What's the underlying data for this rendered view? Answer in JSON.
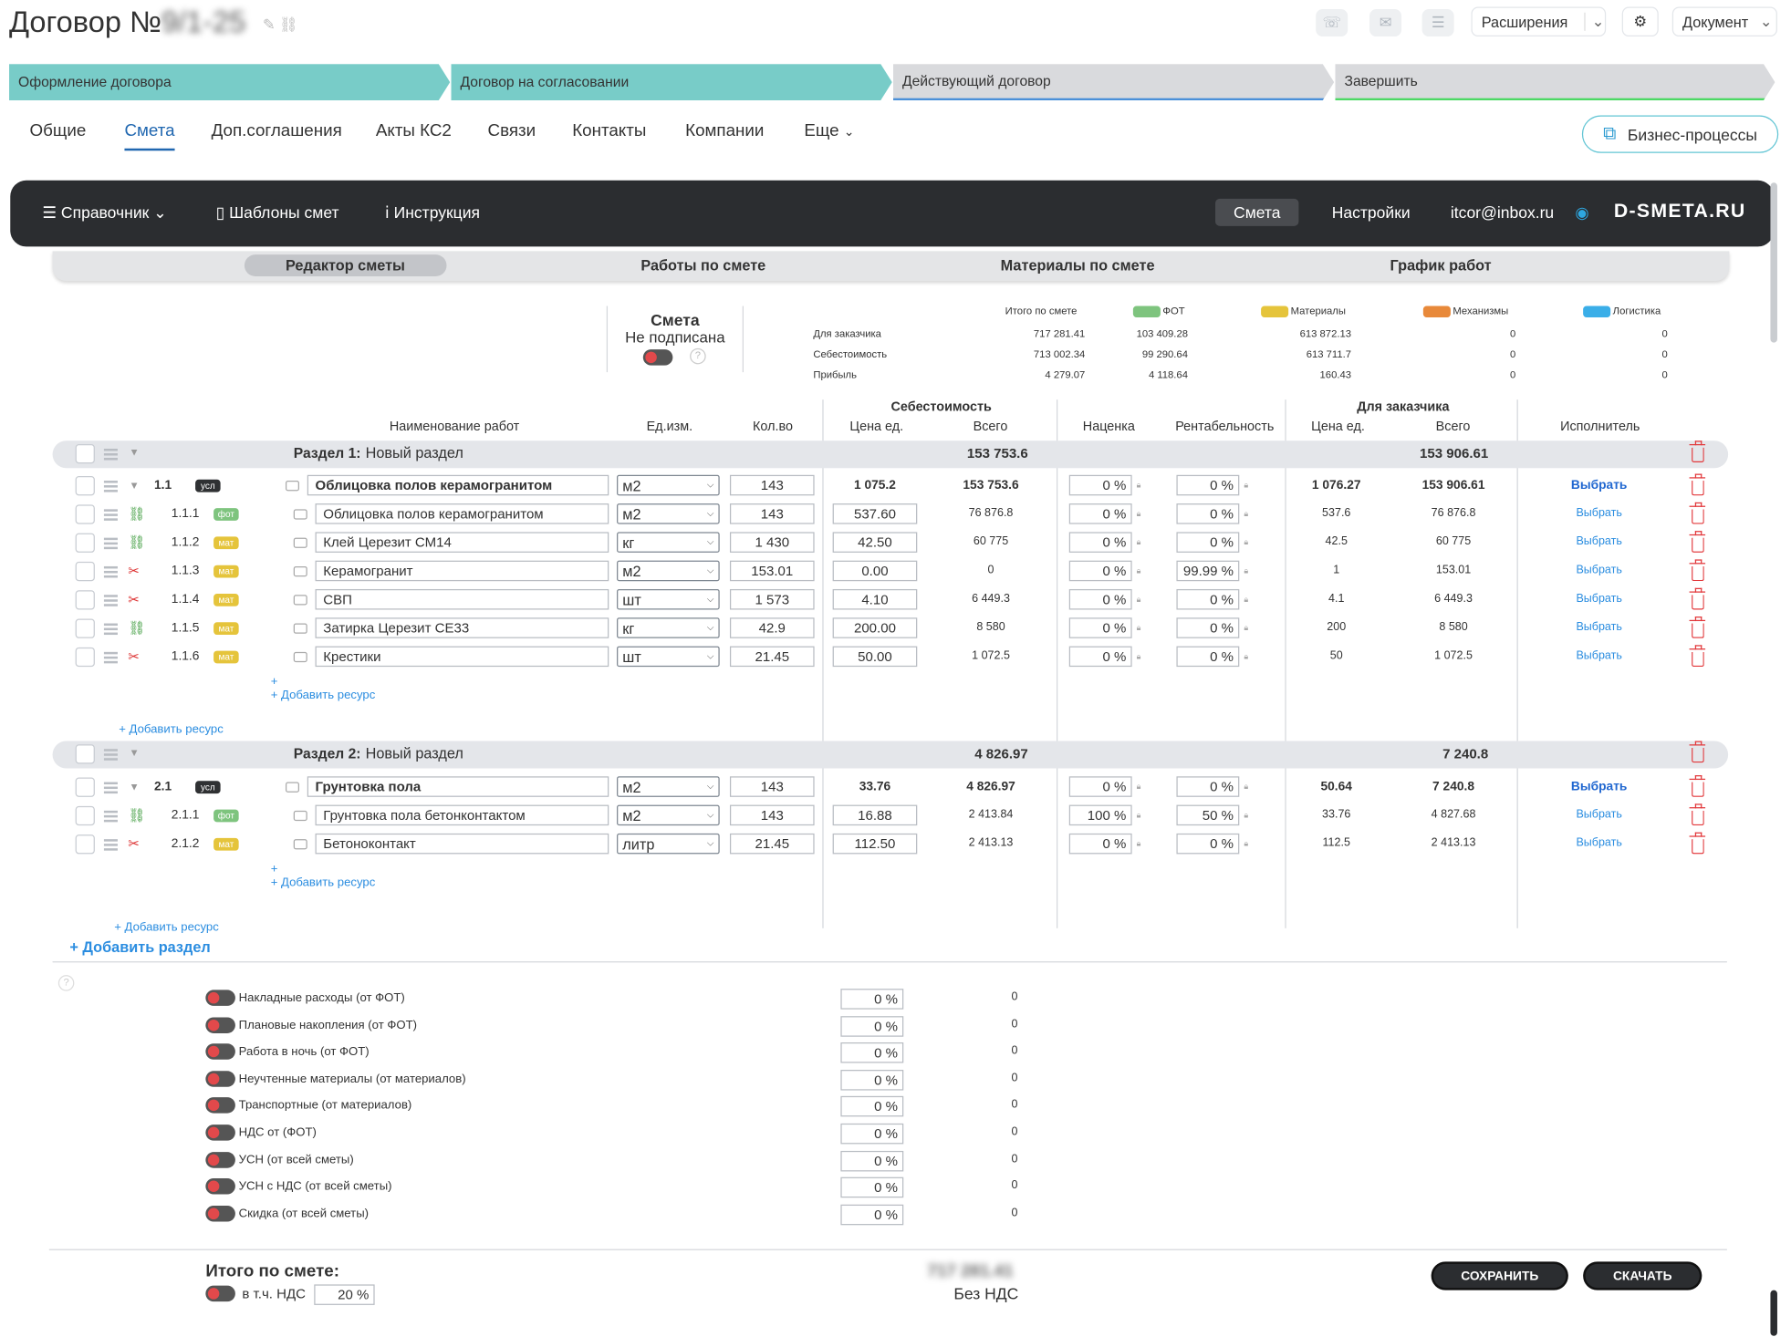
{
  "header": {
    "title": "Договор №9/1-25",
    "title_prefix": "Договор №",
    "title_blurred": "9/1-25",
    "extensions": "Расширения",
    "document": "Документ"
  },
  "stages": [
    {
      "label": "Оформление договора",
      "color": "#78ccc8"
    },
    {
      "label": "Договор на согласовании",
      "color": "#78ccc8"
    },
    {
      "label": "Действующий договор",
      "color": "#d9dadd"
    },
    {
      "label": "Завершить",
      "color": "#d9dadd"
    }
  ],
  "tabs": [
    "Общие",
    "Смета",
    "Доп.соглашения",
    "Акты КС2",
    "Связи",
    "Контакты",
    "Компании",
    "Еще"
  ],
  "business_processes": "Бизнес-процессы",
  "topbar": {
    "reference": "Справочник",
    "templates": "Шаблоны смет",
    "instruction": "Инструкция",
    "smeta": "Смета",
    "settings": "Настройки",
    "email": "itcor@inbox.ru",
    "logo": "D-SMETA.RU"
  },
  "subtabs": [
    "Редактор сметы",
    "Работы по смете",
    "Материалы по смете",
    "График работ"
  ],
  "status": {
    "title": "Смета",
    "state": "Не подписана"
  },
  "summary": {
    "headers": [
      "Итого по смете",
      "ФОТ",
      "Материалы",
      "Механизмы",
      "Логистика"
    ],
    "colors": [
      "#7ec47e",
      "#e5c43b",
      "#e8893a",
      "#3aaee8"
    ],
    "rows": [
      {
        "label": "Для заказчика",
        "values": [
          "717 281.41",
          "103 409.28",
          "613 872.13",
          "0",
          "0"
        ]
      },
      {
        "label": "Себестоимость",
        "values": [
          "713 002.34",
          "99 290.64",
          "613 711.7",
          "0",
          "0"
        ]
      },
      {
        "label": "Прибыль",
        "values": [
          "4 279.07",
          "4 118.64",
          "160.43",
          "0",
          "0"
        ]
      }
    ]
  },
  "columns": {
    "cost_group": "Себестоимость",
    "client_group": "Для заказчика",
    "name": "Наименование работ",
    "unit": "Ед.изм.",
    "qty": "Кол.во",
    "price": "Цена ед.",
    "total": "Всего",
    "markup": "Наценка",
    "profit": "Рентабельность",
    "client_price": "Цена ед.",
    "client_total": "Всего",
    "executor": "Исполнитель"
  },
  "sections": [
    {
      "label": "Раздел 1:",
      "name": "Новый раздел",
      "cost_total": "153 753.6",
      "client_total": "153 906.61",
      "rows": [
        {
          "num": "1.1",
          "badge": "усл",
          "name": "Облицовка полов керамогранитом",
          "unit": "м2",
          "qty": "143",
          "price": "1 075.2",
          "total": "153 753.6",
          "markup": "0",
          "profit": "0",
          "cprice": "1 076.27",
          "ctotal": "153 906.61",
          "exec": "Выбрать",
          "main": true
        },
        {
          "num": "1.1.1",
          "badge": "фот",
          "name": "Облицовка полов керамогранитом",
          "unit": "м2",
          "qty": "143",
          "price": "537.60",
          "total": "76 876.8",
          "markup": "0",
          "profit": "0",
          "cprice": "537.6",
          "ctotal": "76 876.8",
          "exec": "Выбрать",
          "link": "green"
        },
        {
          "num": "1.1.2",
          "badge": "мат",
          "name": "Клей Церезит СМ14",
          "unit": "кг",
          "qty": "1 430",
          "price": "42.50",
          "total": "60 775",
          "markup": "0",
          "profit": "0",
          "cprice": "42.5",
          "ctotal": "60 775",
          "exec": "Выбрать",
          "link": "green"
        },
        {
          "num": "1.1.3",
          "badge": "мат",
          "name": "Керамогранит",
          "unit": "м2",
          "qty": "153.01",
          "price": "0.00",
          "total": "0",
          "markup": "0",
          "profit": "99.99",
          "cprice": "1",
          "ctotal": "153.01",
          "exec": "Выбрать",
          "link": "red"
        },
        {
          "num": "1.1.4",
          "badge": "мат",
          "name": "СВП",
          "unit": "шт",
          "qty": "1 573",
          "price": "4.10",
          "total": "6 449.3",
          "markup": "0",
          "profit": "0",
          "cprice": "4.1",
          "ctotal": "6 449.3",
          "exec": "Выбрать",
          "link": "red"
        },
        {
          "num": "1.1.5",
          "badge": "мат",
          "name": "Затирка Церезит СЕ33",
          "unit": "кг",
          "qty": "42.9",
          "price": "200.00",
          "total": "8 580",
          "markup": "0",
          "profit": "0",
          "cprice": "200",
          "ctotal": "8 580",
          "exec": "Выбрать",
          "link": "green"
        },
        {
          "num": "1.1.6",
          "badge": "мат",
          "name": "Крестики",
          "unit": "шт",
          "qty": "21.45",
          "price": "50.00",
          "total": "1 072.5",
          "markup": "0",
          "profit": "0",
          "cprice": "50",
          "ctotal": "1 072.5",
          "exec": "Выбрать",
          "link": "red"
        }
      ]
    },
    {
      "label": "Раздел 2:",
      "name": "Новый раздел",
      "cost_total": "4 826.97",
      "client_total": "7 240.8",
      "rows": [
        {
          "num": "2.1",
          "badge": "усл",
          "name": "Грунтовка пола",
          "unit": "м2",
          "qty": "143",
          "price": "33.76",
          "total": "4 826.97",
          "markup": "0",
          "profit": "0",
          "cprice": "50.64",
          "ctotal": "7 240.8",
          "exec": "Выбрать",
          "main": true
        },
        {
          "num": "2.1.1",
          "badge": "фот",
          "name": "Грунтовка пола бетонконтактом",
          "unit": "м2",
          "qty": "143",
          "price": "16.88",
          "total": "2 413.84",
          "markup": "100",
          "profit": "50",
          "cprice": "33.76",
          "ctotal": "4 827.68",
          "exec": "Выбрать",
          "link": "green"
        },
        {
          "num": "2.1.2",
          "badge": "мат",
          "name": "Бетоноконтакт",
          "unit": "литр",
          "qty": "21.45",
          "price": "112.50",
          "total": "2 413.13",
          "markup": "0",
          "profit": "0",
          "cprice": "112.5",
          "ctotal": "2 413.13",
          "exec": "Выбрать",
          "link": "red"
        }
      ]
    }
  ],
  "add_work": "+ Добавить ресурс",
  "add_resource_small": "+ Добавить ресурс",
  "add_section": "+ Добавить раздел",
  "adjustments": [
    {
      "label": "Накладные расходы (от ФОТ)",
      "pct": "0",
      "value": "0"
    },
    {
      "label": "Плановые накопления (от ФОТ)",
      "pct": "0",
      "value": "0"
    },
    {
      "label": "Работа в ночь (от ФОТ)",
      "pct": "0",
      "value": "0"
    },
    {
      "label": "Неучтенные материалы (от материалов)",
      "pct": "0",
      "value": "0"
    },
    {
      "label": "Транспортные (от материалов)",
      "pct": "0",
      "value": "0"
    },
    {
      "label": "НДС от (ФОТ)",
      "pct": "0",
      "value": "0"
    },
    {
      "label": "УСН (от всей сметы)",
      "pct": "0",
      "value": "0"
    },
    {
      "label": "УСН с НДС (от всей сметы)",
      "pct": "0",
      "value": "0"
    },
    {
      "label": "Скидка (от всей сметы)",
      "pct": "0",
      "value": "0"
    }
  ],
  "footer": {
    "total_label": "Итого по смете:",
    "vat_label": "в т.ч. НДС",
    "vat_pct": "20",
    "total_value": "717 281.41",
    "no_vat": "Без НДС",
    "save": "СОХРАНИТЬ",
    "download": "СКАЧАТЬ"
  }
}
